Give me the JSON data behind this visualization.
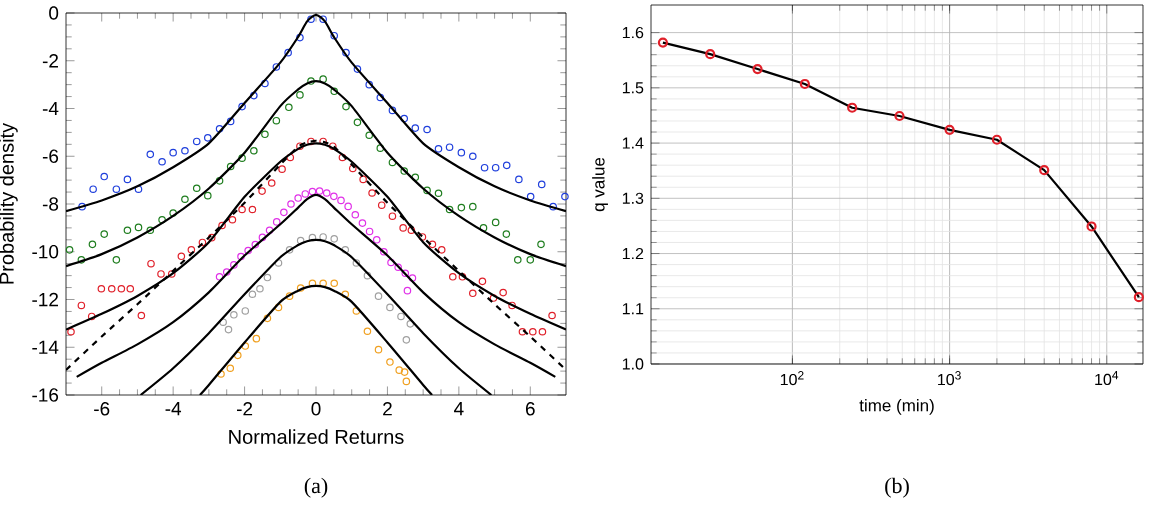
{
  "chart_data": [
    {
      "type": "scatter",
      "xlabel": "Normalized Returns",
      "ylabel": "Probability density",
      "annotations": [
        "(a)"
      ],
      "xlim": [
        -7,
        7
      ],
      "ylim": [
        -16,
        0
      ],
      "xticks": [
        -6,
        -4,
        -2,
        0,
        2,
        4,
        6
      ],
      "yticks": [
        -16,
        -14,
        -12,
        -10,
        -8,
        -6,
        -4,
        -2,
        0
      ],
      "grid": false,
      "series": [
        {
          "color": "#1f3fdc",
          "marker": "circle",
          "x": [
            -6.55,
            -6.24,
            -5.93,
            -5.59,
            -5.28,
            -4.97,
            -4.64,
            -4.31,
            -4.0,
            -3.67,
            -3.34,
            -3.03,
            -2.7,
            -2.39,
            -2.07,
            -1.74,
            -1.43,
            -1.11,
            -0.78,
            -0.45,
            -0.14,
            0.2,
            0.51,
            0.84,
            1.16,
            1.49,
            1.8,
            2.14,
            2.47,
            2.78,
            3.11,
            3.43,
            3.74,
            4.07,
            4.39,
            4.72,
            5.03,
            5.34,
            5.68,
            6.01,
            6.32,
            6.64,
            6.97
          ],
          "values": [
            -8.11,
            -7.38,
            -6.85,
            -7.38,
            -6.97,
            -7.38,
            -5.92,
            -6.23,
            -5.85,
            -5.77,
            -5.38,
            -5.23,
            -4.85,
            -4.54,
            -3.92,
            -3.46,
            -2.95,
            -2.26,
            -1.66,
            -1.03,
            -0.26,
            -0.26,
            -0.95,
            -1.66,
            -2.35,
            -3.0,
            -3.54,
            -4.08,
            -4.42,
            -4.82,
            -4.88,
            -5.69,
            -5.62,
            -5.85,
            -6.0,
            -6.48,
            -6.48,
            -6.38,
            -6.97,
            -7.69,
            -7.18,
            -8.11,
            -7.69
          ]
        },
        {
          "color": "#1e7d1e",
          "marker": "circle",
          "x": [
            -6.9,
            -6.57,
            -6.26,
            -5.93,
            -5.59,
            -5.28,
            -4.97,
            -4.64,
            -4.31,
            -4.0,
            -3.67,
            -3.34,
            -3.03,
            -2.7,
            -2.39,
            -2.07,
            -1.74,
            -1.43,
            -1.11,
            -0.76,
            -0.45,
            -0.14,
            0.2,
            0.51,
            0.84,
            1.16,
            1.49,
            1.8,
            2.14,
            2.47,
            2.78,
            3.11,
            3.43,
            3.74,
            4.07,
            4.39,
            4.69,
            5.03,
            5.33,
            5.65,
            6.0,
            6.3
          ],
          "values": [
            -9.92,
            -10.34,
            -9.69,
            -9.26,
            -10.34,
            -9.1,
            -8.98,
            -9.1,
            -8.66,
            -8.38,
            -7.8,
            -7.34,
            -7.65,
            -7.03,
            -6.43,
            -6.08,
            -5.77,
            -5.08,
            -4.51,
            -3.95,
            -3.43,
            -2.85,
            -2.77,
            -3.28,
            -3.92,
            -4.58,
            -5.12,
            -5.66,
            -6.26,
            -6.62,
            -6.88,
            -7.43,
            -7.55,
            -8.23,
            -8.15,
            -8.11,
            -9.0,
            -8.77,
            -9.26,
            -10.34,
            -10.34,
            -9.69
          ]
        },
        {
          "color": "#e0202a",
          "marker": "circle",
          "x": [
            -6.86,
            -6.57,
            -6.28,
            -6.01,
            -5.72,
            -5.45,
            -5.2,
            -4.89,
            -4.62,
            -4.34,
            -4.04,
            -3.77,
            -3.49,
            -3.18,
            -2.92,
            -2.63,
            -2.34,
            -2.07,
            -1.78,
            -1.51,
            -1.24,
            -0.95,
            -0.72,
            -0.45,
            -0.14,
            0.2,
            0.47,
            0.74,
            1.03,
            1.32,
            1.57,
            1.84,
            2.14,
            2.44,
            2.67,
            2.98,
            3.26,
            3.52,
            3.83,
            4.1,
            4.39,
            4.66,
            4.97,
            5.24,
            5.49,
            5.78,
            6.07,
            6.34,
            6.61
          ],
          "values": [
            -13.35,
            -12.25,
            -12.71,
            -11.55,
            -11.55,
            -11.55,
            -11.55,
            -12.67,
            -10.5,
            -10.93,
            -10.93,
            -10.19,
            -9.92,
            -9.61,
            -9.41,
            -8.9,
            -8.66,
            -8.23,
            -8.23,
            -7.46,
            -7.12,
            -6.54,
            -6.05,
            -5.58,
            -5.38,
            -5.38,
            -5.58,
            -6.05,
            -6.51,
            -6.97,
            -7.54,
            -8.05,
            -8.51,
            -9.0,
            -9.1,
            -9.38,
            -9.69,
            -9.92,
            -11.05,
            -11.05,
            -11.74,
            -11.24,
            -11.94,
            -11.71,
            -12.25,
            -13.35,
            -13.35,
            -13.35,
            -12.67
          ]
        },
        {
          "color": "#e030e8",
          "marker": "circle",
          "x": [
            -2.7,
            -2.5,
            -2.3,
            -2.1,
            -1.9,
            -1.7,
            -1.5,
            -1.3,
            -1.1,
            -0.9,
            -0.7,
            -0.5,
            -0.3,
            -0.1,
            0.1,
            0.3,
            0.5,
            0.7,
            0.9,
            1.1,
            1.3,
            1.5,
            1.7,
            1.9,
            2.1,
            2.3,
            2.5,
            2.56,
            2.7
          ],
          "values": [
            -11.05,
            -10.85,
            -10.55,
            -10.2,
            -9.95,
            -9.7,
            -9.4,
            -9.1,
            -8.75,
            -8.35,
            -8.0,
            -7.75,
            -7.58,
            -7.48,
            -7.46,
            -7.54,
            -7.68,
            -7.85,
            -8.1,
            -8.45,
            -8.8,
            -9.15,
            -9.5,
            -10.0,
            -10.45,
            -10.65,
            -10.9,
            -11.63,
            -11.1
          ]
        },
        {
          "color": "#a0a0a0",
          "marker": "circle",
          "x": [
            -2.6,
            -2.45,
            -2.3,
            -1.98,
            -1.78,
            -1.57,
            -1.36,
            -1.05,
            -0.74,
            -0.43,
            -0.1,
            0.2,
            0.51,
            0.82,
            1.13,
            1.44,
            1.75,
            2.07,
            2.38,
            2.53,
            2.64
          ],
          "values": [
            -12.95,
            -13.26,
            -12.64,
            -12.48,
            -11.78,
            -11.55,
            -11.08,
            -10.47,
            -9.92,
            -9.53,
            -9.41,
            -9.38,
            -9.46,
            -9.92,
            -10.47,
            -11.0,
            -11.86,
            -12.33,
            -12.71,
            -13.69,
            -13.02
          ]
        },
        {
          "color": "#f0a020",
          "marker": "circle",
          "x": [
            -2.66,
            -2.4,
            -2.19,
            -1.98,
            -1.67,
            -1.36,
            -1.05,
            -0.74,
            -0.43,
            -0.1,
            0.2,
            0.51,
            0.82,
            1.13,
            1.44,
            1.75,
            2.07,
            2.33,
            2.48,
            2.53
          ],
          "values": [
            -15.12,
            -14.88,
            -14.34,
            -13.95,
            -13.64,
            -12.79,
            -12.33,
            -11.86,
            -11.52,
            -11.32,
            -11.32,
            -11.32,
            -11.78,
            -12.48,
            -13.33,
            -14.1,
            -14.62,
            -14.96,
            -15.04,
            -15.43
          ]
        },
        {
          "type": "line",
          "color": "#000000",
          "marker": "none",
          "x": [
            -7,
            -6,
            -5,
            -4,
            -3,
            -2,
            -1,
            -0.5,
            -0.25,
            0,
            0.25,
            0.5,
            1,
            2,
            3,
            4,
            5,
            6,
            7
          ],
          "values": [
            -8.3,
            -7.85,
            -7.26,
            -6.46,
            -5.46,
            -3.77,
            -2.08,
            -1.0,
            -0.35,
            -0.08,
            -0.35,
            -1.0,
            -2.08,
            -3.77,
            -5.46,
            -6.46,
            -7.26,
            -7.85,
            -8.3
          ]
        },
        {
          "type": "line",
          "color": "#000000",
          "marker": "none",
          "x": [
            -7,
            -6,
            -5,
            -4,
            -3,
            -2,
            -1,
            -0.5,
            -0.25,
            0,
            0.25,
            0.5,
            1,
            2,
            3,
            4,
            5,
            6,
            7
          ],
          "values": [
            -10.6,
            -10.1,
            -9.4,
            -8.5,
            -7.35,
            -5.85,
            -3.9,
            -3.2,
            -2.95,
            -2.85,
            -2.95,
            -3.2,
            -3.9,
            -5.85,
            -7.35,
            -8.5,
            -9.4,
            -10.1,
            -10.6
          ]
        },
        {
          "type": "line",
          "color": "#000000",
          "marker": "none",
          "x": [
            -7,
            -6,
            -5,
            -4,
            -3,
            -2,
            -1,
            -0.5,
            -0.25,
            0,
            0.25,
            0.5,
            1,
            2,
            3,
            4,
            5,
            6,
            7
          ],
          "values": [
            -13.26,
            -12.6,
            -11.85,
            -10.9,
            -9.6,
            -7.7,
            -6.23,
            -5.69,
            -5.52,
            -5.46,
            -5.52,
            -5.69,
            -6.23,
            -7.7,
            -9.6,
            -10.9,
            -11.85,
            -12.6,
            -13.26
          ]
        },
        {
          "type": "line",
          "color": "#000000",
          "marker": "none",
          "line_style": "dashed",
          "x": [
            -7,
            -6,
            -5,
            -4,
            -3,
            -2,
            -1,
            -0.5,
            -0.25,
            0,
            0.25,
            0.5,
            1,
            2,
            3,
            4,
            5,
            6,
            7
          ],
          "values": [
            -14.95,
            -13.55,
            -12.2,
            -10.8,
            -9.4,
            -7.95,
            -6.35,
            -5.6,
            -5.42,
            -5.35,
            -5.42,
            -5.6,
            -6.35,
            -7.95,
            -9.4,
            -10.8,
            -12.2,
            -13.55,
            -14.95
          ]
        },
        {
          "type": "line",
          "color": "#000000",
          "marker": "none",
          "x": [
            -6.7,
            -6,
            -5,
            -4,
            -3,
            -2,
            -1,
            -0.5,
            -0.25,
            0,
            0.25,
            0.5,
            1,
            2,
            3,
            4,
            5,
            6,
            6.7
          ],
          "values": [
            -15.24,
            -14.65,
            -13.88,
            -12.95,
            -11.7,
            -10.16,
            -8.85,
            -8.15,
            -7.8,
            -7.62,
            -7.8,
            -8.15,
            -8.85,
            -10.16,
            -11.7,
            -12.95,
            -13.88,
            -14.65,
            -15.24
          ]
        },
        {
          "type": "line",
          "color": "#000000",
          "marker": "none",
          "x": [
            -4.91,
            -4,
            -3,
            -2,
            -1,
            -0.5,
            -0.25,
            0,
            0.25,
            0.5,
            1,
            2,
            3,
            4,
            4.91
          ],
          "values": [
            -16,
            -14.88,
            -13.41,
            -11.78,
            -10.23,
            -9.72,
            -9.56,
            -9.5,
            -9.56,
            -9.72,
            -10.23,
            -11.78,
            -13.41,
            -14.88,
            -16
          ]
        },
        {
          "type": "line",
          "color": "#000000",
          "marker": "none",
          "x": [
            -3.25,
            -3,
            -2,
            -1,
            -0.5,
            -0.25,
            0,
            0.25,
            0.5,
            1,
            2,
            3,
            3.25
          ],
          "values": [
            -16,
            -15.58,
            -13.8,
            -12.1,
            -11.63,
            -11.48,
            -11.43,
            -11.48,
            -11.63,
            -12.1,
            -13.8,
            -15.58,
            -16
          ]
        }
      ]
    },
    {
      "type": "line",
      "xlabel": "time (min)",
      "ylabel": "q value",
      "annotations": [
        "(b)"
      ],
      "log": "x",
      "xlim": [
        12.6,
        17000
      ],
      "ylim": [
        1.0,
        1.65
      ],
      "xticks": [
        {
          "value": 100,
          "label": "10$^{2}$"
        },
        {
          "value": 1000,
          "label": "10$^{3}$"
        },
        {
          "value": 10000,
          "label": "10$^{4}$"
        }
      ],
      "yticks": [
        {
          "value": 1.0,
          "label": "1.0"
        },
        1.1,
        1.2,
        1.3,
        1.4,
        1.5,
        1.6
      ],
      "grid": true,
      "x": [
        15,
        30,
        60,
        120,
        240,
        480,
        1000,
        2000,
        4000,
        8000,
        16000
      ],
      "series": [
        {
          "color": "#000000",
          "marker": "none",
          "values": [
            1.582,
            1.561,
            1.534,
            1.507,
            1.464,
            1.449,
            1.424,
            1.406,
            1.351,
            1.249,
            1.121
          ]
        },
        {
          "type": "scatter",
          "color": "#e0202a",
          "marker": "circle",
          "values": [
            1.582,
            1.561,
            1.534,
            1.507,
            1.464,
            1.449,
            1.424,
            1.406,
            1.351,
            1.249,
            1.121
          ]
        }
      ]
    }
  ]
}
